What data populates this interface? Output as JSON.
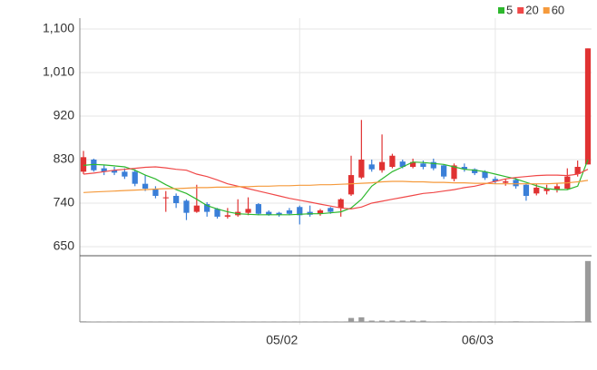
{
  "chart_data": {
    "type": "candlestick",
    "categories": [
      null,
      null,
      null,
      null,
      null,
      null,
      null,
      null,
      null,
      null,
      null,
      null,
      null,
      null,
      null,
      null,
      null,
      null,
      null,
      null,
      null,
      "05/02",
      null,
      null,
      null,
      null,
      null,
      null,
      null,
      null,
      null,
      null,
      null,
      null,
      null,
      null,
      null,
      null,
      null,
      null,
      "06/03",
      null,
      null,
      null,
      null,
      null,
      null,
      null,
      null,
      null
    ],
    "open": [
      805,
      830,
      812,
      808,
      805,
      805,
      780,
      770,
      750,
      755,
      745,
      722,
      738,
      728,
      712,
      715,
      720,
      738,
      722,
      720,
      725,
      732,
      722,
      718,
      730,
      730,
      758,
      793,
      820,
      808,
      815,
      826,
      815,
      822,
      825,
      818,
      790,
      815,
      810,
      805,
      790,
      782,
      788,
      778,
      760,
      765,
      768,
      770,
      800,
      820
    ],
    "high": [
      848,
      832,
      818,
      815,
      812,
      810,
      798,
      775,
      765,
      760,
      748,
      778,
      742,
      730,
      730,
      748,
      752,
      740,
      725,
      722,
      730,
      735,
      735,
      728,
      732,
      750,
      838,
      912,
      830,
      882,
      842,
      830,
      832,
      828,
      832,
      820,
      822,
      822,
      812,
      808,
      795,
      790,
      792,
      780,
      780,
      778,
      782,
      812,
      828,
      1060
    ],
    "low": [
      800,
      805,
      798,
      798,
      790,
      775,
      765,
      750,
      722,
      730,
      705,
      720,
      712,
      708,
      708,
      712,
      715,
      715,
      714,
      712,
      715,
      696,
      712,
      714,
      718,
      712,
      755,
      790,
      805,
      803,
      812,
      812,
      812,
      810,
      808,
      790,
      785,
      805,
      798,
      788,
      780,
      776,
      770,
      745,
      756,
      758,
      762,
      768,
      795,
      820
    ],
    "close": [
      835,
      808,
      805,
      803,
      795,
      780,
      770,
      755,
      752,
      740,
      720,
      735,
      722,
      712,
      715,
      722,
      728,
      718,
      716,
      716,
      718,
      715,
      716,
      725,
      722,
      748,
      798,
      830,
      810,
      825,
      838,
      815,
      825,
      815,
      812,
      795,
      818,
      810,
      802,
      792,
      785,
      785,
      775,
      755,
      772,
      770,
      775,
      795,
      815,
      1060
    ],
    "up_color": "#e03232",
    "down_color": "#3a7fd8",
    "series": [
      {
        "name": "5",
        "color": "#2db82d",
        "values": [
          818,
          820,
          819,
          817,
          815,
          808,
          798,
          790,
          778,
          768,
          760,
          748,
          735,
          728,
          722,
          718,
          717,
          716,
          716,
          716,
          716,
          717,
          718,
          718,
          720,
          722,
          730,
          748,
          775,
          790,
          805,
          815,
          825,
          824,
          822,
          820,
          815,
          810,
          808,
          805,
          800,
          795,
          790,
          783,
          776,
          770,
          768,
          768,
          775,
          830
        ]
      },
      {
        "name": "20",
        "color": "#f04848",
        "values": [
          800,
          802,
          805,
          808,
          810,
          812,
          814,
          815,
          813,
          810,
          808,
          800,
          795,
          788,
          780,
          775,
          770,
          765,
          760,
          755,
          750,
          746,
          742,
          738,
          734,
          730,
          728,
          732,
          740,
          744,
          748,
          752,
          756,
          760,
          762,
          765,
          768,
          772,
          775,
          780,
          785,
          790,
          793,
          795,
          797,
          798,
          798,
          797,
          800,
          810
        ]
      },
      {
        "name": "60",
        "color": "#f59a3c",
        "values": [
          762,
          763,
          764,
          765,
          766,
          767,
          768,
          769,
          770,
          770,
          771,
          772,
          772,
          773,
          773,
          774,
          774,
          775,
          775,
          776,
          776,
          777,
          777,
          778,
          778,
          779,
          780,
          781,
          782,
          784,
          785,
          785,
          784,
          784,
          783,
          783,
          782,
          782,
          781,
          781,
          780,
          780,
          780,
          780,
          780,
          780,
          781,
          782,
          784,
          787
        ]
      }
    ],
    "volume": [
      1,
      0.5,
      0.5,
      0.5,
      0.5,
      0.5,
      0.5,
      0.5,
      0.5,
      0.5,
      0.5,
      0.5,
      0.5,
      0.5,
      0.5,
      0.5,
      0.5,
      0.5,
      0.5,
      0.5,
      0.5,
      0.5,
      0.5,
      0.5,
      0.5,
      0.5,
      6,
      7,
      2,
      2,
      2,
      2,
      2,
      2,
      0.5,
      1,
      0.5,
      0.5,
      0.5,
      0.5,
      0.5,
      0.5,
      1,
      0.5,
      0.5,
      0.5,
      0.5,
      0.5,
      1,
      92
    ],
    "volume_color": "#9a9a9a",
    "volume_ylim": [
      0,
      100
    ],
    "ylim": [
      631.25,
      1122.5
    ],
    "yticks": [
      {
        "value": 1100,
        "label": "1,100"
      },
      {
        "value": 1010,
        "label": "1,010"
      },
      920,
      830,
      740,
      650
    ],
    "grid": true
  }
}
